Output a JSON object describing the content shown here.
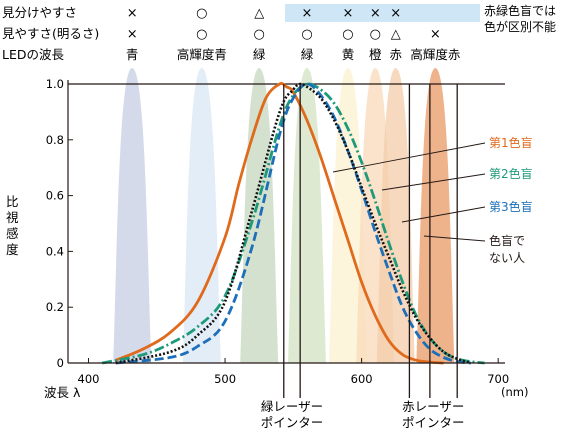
{
  "header": {
    "row_labels": [
      "見分けやすさ",
      "見やすさ(明るさ)",
      "LEDの波長"
    ],
    "columns": [
      {
        "name": "青",
        "wavelength": 432,
        "row1": "×",
        "row2": "×",
        "color": "#c7cde4"
      },
      {
        "name": "高輝度青",
        "wavelength": 483,
        "row1": "○",
        "row2": "○",
        "color": "#d9e7f5"
      },
      {
        "name": "緑",
        "wavelength": 525,
        "row1": "△",
        "row2": "○",
        "color": "#c6d7bf"
      },
      {
        "name": "緑",
        "wavelength": 560,
        "row1": "×",
        "row2": "○",
        "color": "#d3e2c3"
      },
      {
        "name": "黄",
        "wavelength": 590,
        "row1": "×",
        "row2": "○",
        "color": "#fbf1cf"
      },
      {
        "name": "橙",
        "wavelength": 610,
        "row1": "×",
        "row2": "○",
        "color": "#f8d9b8"
      },
      {
        "name": "赤",
        "wavelength": 625,
        "row1": "×",
        "row2": "△",
        "color": "#f3cca9"
      },
      {
        "name": "高輝度赤",
        "wavelength": 654,
        "row1": "",
        "row2": "×",
        "color": "#e99a66"
      }
    ],
    "note_line1": "赤緑色盲では",
    "note_line2": "色が区別不能",
    "note_color": "#cfe6f7"
  },
  "chart_data": {
    "type": "line",
    "xlabel": "波長 λ",
    "xunit": "(nm)",
    "ylabel": "比視感度",
    "xlim": [
      385,
      705
    ],
    "ylim": [
      0,
      1.0
    ],
    "xticks": [
      400,
      500,
      600,
      700
    ],
    "yticks": [
      0,
      0.2,
      0.4,
      0.6,
      0.8,
      1.0
    ],
    "ytick_labels": [
      "0",
      "0.2",
      "0.4",
      "0.6",
      "0.8",
      "1.0"
    ],
    "series": [
      {
        "name": "第1色盲",
        "color": "#e06a1c",
        "dash": "",
        "x": [
          420,
          440,
          460,
          480,
          500,
          510,
          520,
          530,
          540,
          545,
          550,
          560,
          570,
          580,
          590,
          600,
          610,
          620,
          630,
          640,
          650,
          660
        ],
        "y": [
          0.01,
          0.05,
          0.11,
          0.22,
          0.45,
          0.64,
          0.81,
          0.95,
          1.0,
          0.99,
          0.97,
          0.87,
          0.74,
          0.59,
          0.44,
          0.29,
          0.17,
          0.08,
          0.03,
          0.01,
          0.003,
          0.0
        ]
      },
      {
        "name": "第2色盲",
        "color": "#1e9a7a",
        "dash": "10,3,2,3",
        "x": [
          410,
          440,
          460,
          480,
          500,
          520,
          540,
          550,
          560,
          570,
          580,
          590,
          600,
          610,
          620,
          630,
          640,
          650,
          660,
          670,
          680,
          690
        ],
        "y": [
          0.0,
          0.03,
          0.07,
          0.13,
          0.24,
          0.51,
          0.85,
          0.96,
          1.0,
          0.98,
          0.93,
          0.84,
          0.72,
          0.58,
          0.43,
          0.29,
          0.17,
          0.09,
          0.04,
          0.015,
          0.005,
          0.0
        ]
      },
      {
        "name": "第3色盲",
        "color": "#1c6fb8",
        "dash": "9,4",
        "x": [
          420,
          460,
          480,
          500,
          520,
          540,
          550,
          560,
          570,
          580,
          590,
          600,
          610,
          620,
          630,
          640,
          650,
          660,
          670,
          680
        ],
        "y": [
          0.0,
          0.02,
          0.06,
          0.15,
          0.42,
          0.82,
          0.95,
          1.0,
          0.96,
          0.88,
          0.76,
          0.62,
          0.47,
          0.33,
          0.2,
          0.11,
          0.05,
          0.02,
          0.005,
          0.0
        ]
      },
      {
        "name": "色盲でない人",
        "color": "#111111",
        "dash": "2,2",
        "x": [
          420,
          460,
          480,
          500,
          520,
          540,
          550,
          555,
          560,
          570,
          580,
          590,
          600,
          610,
          620,
          630,
          640,
          650,
          660,
          670,
          680
        ],
        "y": [
          0.0,
          0.04,
          0.1,
          0.22,
          0.55,
          0.9,
          0.98,
          1.0,
          0.99,
          0.95,
          0.87,
          0.76,
          0.63,
          0.5,
          0.38,
          0.26,
          0.16,
          0.09,
          0.04,
          0.015,
          0.0
        ]
      }
    ],
    "legend_labels": [
      {
        "text": "第1色盲",
        "color": "#e06a1c"
      },
      {
        "text": "第2色盲",
        "color": "#1e9a7a"
      },
      {
        "text": "第3色盲",
        "color": "#1c6fb8"
      },
      {
        "text": "色盲でない人",
        "color": "#231815"
      }
    ],
    "laser_lines": [
      {
        "label_line1": "緑レーザー",
        "label_line2": "ポインター",
        "wavelengths": [
          543,
          555
        ]
      },
      {
        "label_line1": "赤レーザー",
        "label_line2": "ポインター",
        "wavelengths": [
          635,
          650,
          670
        ]
      }
    ]
  }
}
